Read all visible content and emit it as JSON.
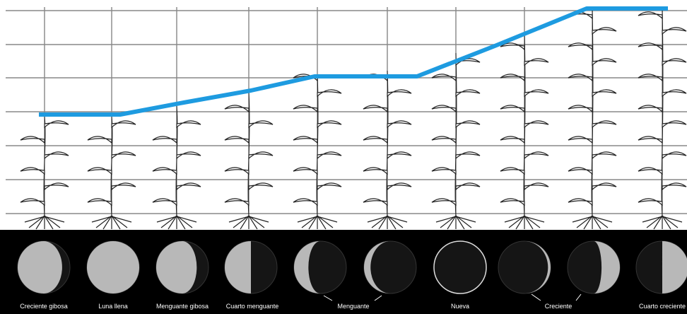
{
  "moon_phases": {
    "labels": [
      "Creciente gibosa",
      "Luna llena",
      "Menguante gibosa",
      "Cuarto menguante",
      "Menguante",
      "Nueva",
      "Creciente",
      "Cuarto creciente"
    ]
  }
}
